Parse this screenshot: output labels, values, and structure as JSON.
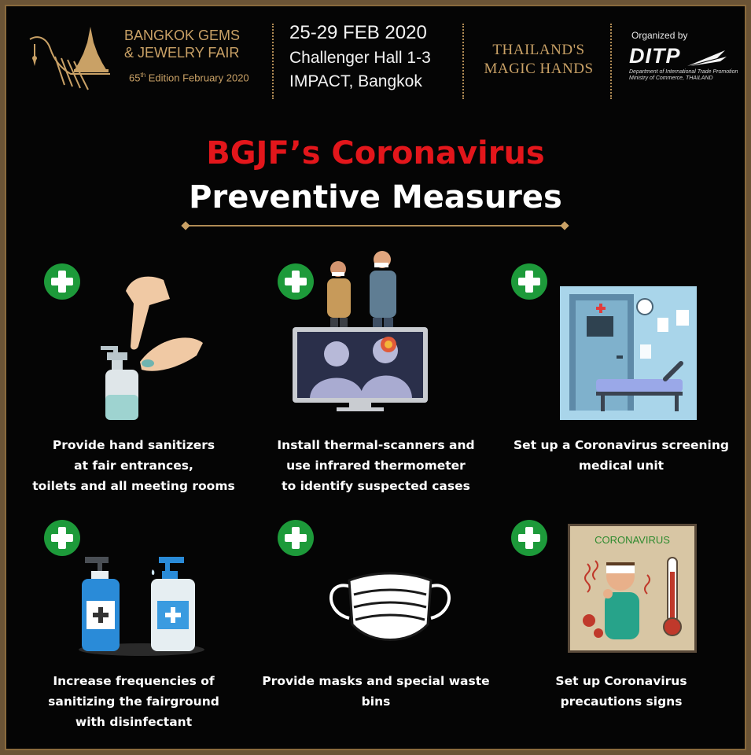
{
  "header": {
    "fair_name_line1": "BANGKOK GEMS",
    "fair_name_line2": "& JEWELRY FAIR",
    "edition_number": "65",
    "edition_suffix": "th",
    "edition_text": " Edition February 2020",
    "event_date": "25-29 FEB 2020",
    "event_hall": "Challenger Hall 1-3",
    "event_venue": "IMPACT, Bangkok",
    "slogan_line1": "THAILAND'S",
    "slogan_line2": "MAGIC HANDS",
    "organizer_label": "Organized by",
    "organizer_name": "DITP",
    "organizer_sub1": "Department of International Trade Promotion",
    "organizer_sub2": "Ministry of Commerce, THAILAND"
  },
  "title": {
    "line1": "BGJF’s Coronavirus",
    "line2": "Preventive Measures"
  },
  "measures": [
    {
      "line1": "Provide hand sanitizers",
      "line2": "at fair entrances,",
      "line3": "toilets and all meeting rooms"
    },
    {
      "line1": "Install thermal-scanners and",
      "line2": "use infrared thermometer",
      "line3": "to identify suspected cases"
    },
    {
      "line1": "Set up a Coronavirus screening",
      "line2": "medical unit"
    },
    {
      "line1": "Increase frequencies of",
      "line2": "sanitizing the fairground",
      "line3": "with disinfectant"
    },
    {
      "line1": "Provide masks and special waste bins"
    },
    {
      "line1": "Set up Coronavirus",
      "line2": "precautions signs"
    }
  ],
  "sign_label": "CORONAVIRUS",
  "colors": {
    "accent_gold": "#c9a166",
    "title_red": "#e3161b",
    "plus_green": "#1d9a3a",
    "background": "#050505"
  }
}
